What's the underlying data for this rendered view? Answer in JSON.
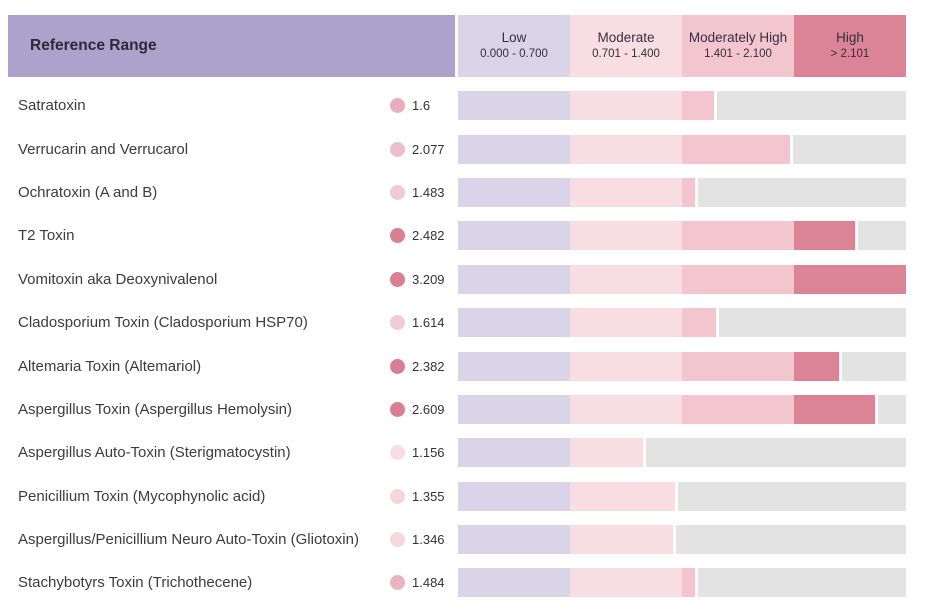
{
  "header": {
    "title": "Reference Range",
    "title_bg": "#aca2cc"
  },
  "chart_data": {
    "type": "bar",
    "orientation": "horizontal",
    "title": "Reference Range",
    "x_axis": {
      "zone_value_span": 0.7,
      "display_max": 2.8,
      "zones": [
        {
          "label": "Low",
          "range_text": "0.000 - 0.700",
          "min": 0.0,
          "max": 0.7,
          "color": "#d9d4e7"
        },
        {
          "label": "Moderate",
          "range_text": "0.701 - 1.400",
          "min": 0.701,
          "max": 1.4,
          "color": "#f8dee3"
        },
        {
          "label": "Moderately High",
          "range_text": "1.401 - 2.100",
          "min": 1.401,
          "max": 2.1,
          "color": "#f2c5cf"
        },
        {
          "label": "High",
          "range_text": "> 2.101",
          "min": 2.101,
          "max": null,
          "color": "#db8496"
        }
      ]
    },
    "unfilled_color": "#e3e3e4",
    "rows": [
      {
        "label": "Satratoxin",
        "value": 1.6,
        "value_text": "1.6",
        "dot_color": "#e9aebb"
      },
      {
        "label": "Verrucarin and Verrucarol",
        "value": 2.077,
        "value_text": "2.077",
        "dot_color": "#edc0c9"
      },
      {
        "label": "Ochratoxin (A and B)",
        "value": 1.483,
        "value_text": "1.483",
        "dot_color": "#f0c9d1"
      },
      {
        "label": "T2 Toxin",
        "value": 2.482,
        "value_text": "2.482",
        "dot_color": "#d88092"
      },
      {
        "label": "Vomitoxin aka Deoxynivalenol",
        "value": 3.209,
        "value_text": "3.209",
        "dot_color": "#d88092"
      },
      {
        "label": "Cladosporium Toxin (Cladosporium HSP70)",
        "value": 1.614,
        "value_text": "1.614",
        "dot_color": "#f2cad2"
      },
      {
        "label": "Altemaria Toxin (Altemariol)",
        "value": 2.382,
        "value_text": "2.382",
        "dot_color": "#d88092"
      },
      {
        "label": "Aspergillus Toxin (Aspergillus Hemolysin)",
        "value": 2.609,
        "value_text": "2.609",
        "dot_color": "#d88092"
      },
      {
        "label": "Aspergillus Auto-Toxin (Sterigmatocystin)",
        "value": 1.156,
        "value_text": "1.156",
        "dot_color": "#f8dde3"
      },
      {
        "label": "Penicillium Toxin (Mycophynolic acid)",
        "value": 1.355,
        "value_text": "1.355",
        "dot_color": "#f5d6dc"
      },
      {
        "label": "Aspergillus/Penicillium Neuro Auto-Toxin (Gliotoxin)",
        "value": 1.346,
        "value_text": "1.346",
        "dot_color": "#f5d8de"
      },
      {
        "label": "Stachybotyrs Toxin (Trichothecene)",
        "value": 1.484,
        "value_text": "1.484",
        "dot_color": "#eab4bf"
      }
    ]
  }
}
